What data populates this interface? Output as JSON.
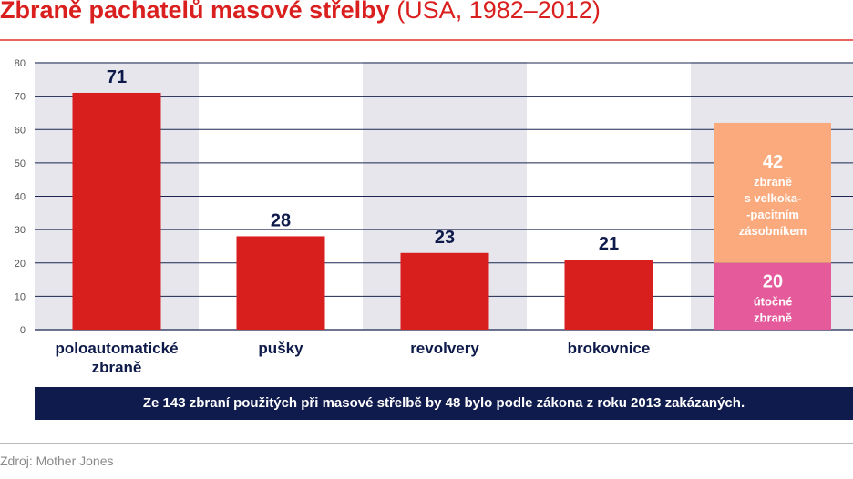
{
  "header": {
    "title": "Zbraně pachatelů masové střelby",
    "subtitle": "(USA, 1982–2012)"
  },
  "chart_data": {
    "type": "bar",
    "ylim": [
      0,
      80
    ],
    "yticks": [
      "0",
      "10",
      "20",
      "30",
      "40",
      "50",
      "60",
      "70",
      "80"
    ],
    "grid": true,
    "bar_color": "#d91e1e",
    "band_color": "#e6e6ec",
    "categories": [
      [
        "poloautomatické",
        "zbraně"
      ],
      [
        "pušky"
      ],
      [
        "revolvery"
      ],
      [
        "brokovnice"
      ]
    ],
    "values": [
      71,
      28,
      23,
      21
    ],
    "stacked": {
      "segments": [
        {
          "value": 20,
          "label": [
            "útočné",
            "zbraně"
          ],
          "color": "#e45a9b"
        },
        {
          "value": 42,
          "label": [
            "zbraně",
            "s velkoka-",
            "-pacitním",
            "zásobníkem"
          ],
          "color": "#fbaa7d"
        }
      ]
    }
  },
  "banner": {
    "text": "Ze 143 zbraní použitých při masové střelbě by 48 bylo podle zákona z roku 2013 zakázaných."
  },
  "footer": {
    "source": "Zdroj: Mother Jones"
  }
}
